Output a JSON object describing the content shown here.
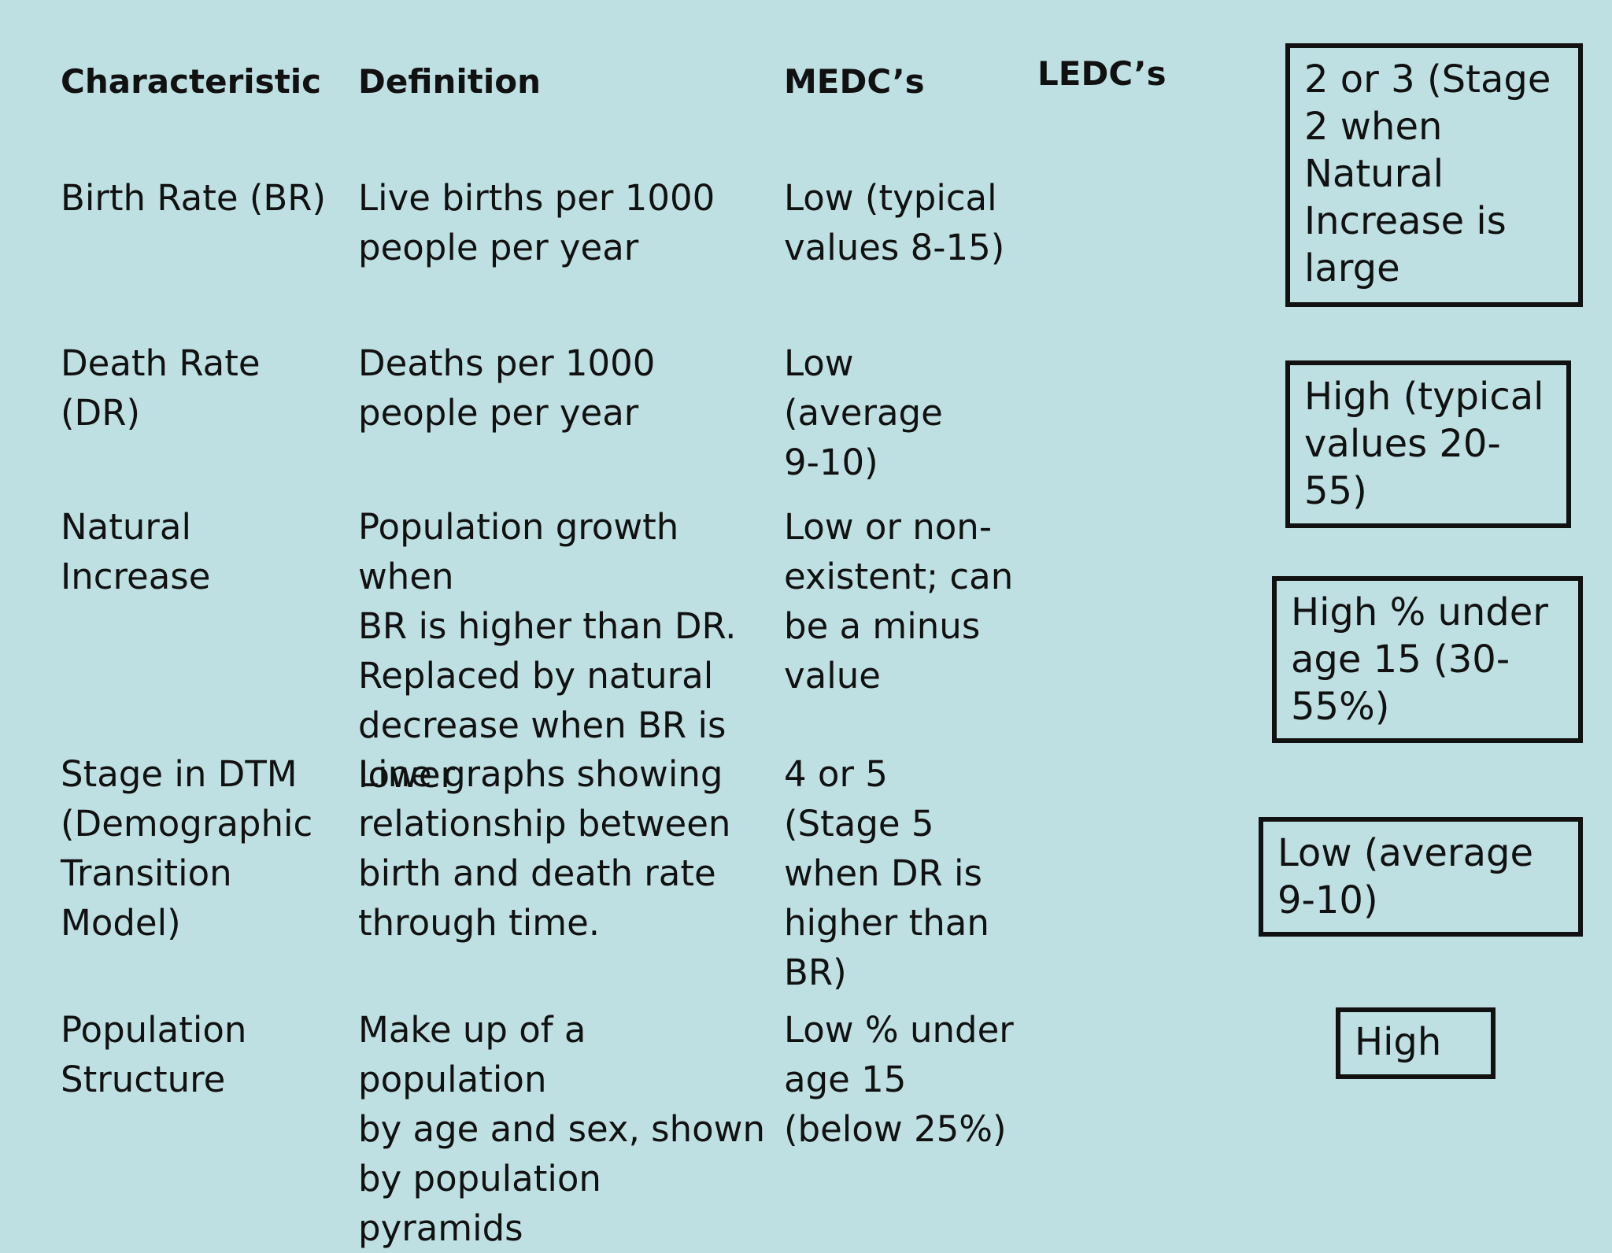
{
  "headers": {
    "characteristic": "Characteristic",
    "definition": "Definition",
    "medcs": "MEDC’s",
    "ledcs": "LEDC’s"
  },
  "rows": [
    {
      "characteristic": "Birth Rate (BR)",
      "definition": "Live births per 1000\npeople per year",
      "medc": "Low (typical\nvalues 8-15)"
    },
    {
      "characteristic": "Death Rate\n(DR)",
      "definition": "Deaths per 1000\npeople per year",
      "medc": "Low (average\n9-10)"
    },
    {
      "characteristic": "Natural\nIncrease",
      "definition": "Population growth when\nBR is higher than DR.\nReplaced by natural\ndecrease when BR is\nlower",
      "medc": "Low or non-\nexistent; can\nbe a minus\nvalue"
    },
    {
      "characteristic": "Stage in DTM\n(Demographic\nTransition\nModel)",
      "definition": "Line graphs showing\nrelationship between\nbirth and death rate\nthrough time.",
      "medc": "4 or 5\n(Stage 5\nwhen DR is\nhigher than\nBR)"
    },
    {
      "characteristic": "Population\nStructure",
      "definition": "Make up of a population\nby age and sex, shown\nby population pyramids",
      "medc": "Low % under\nage 15\n(below 25%)"
    }
  ],
  "ledc_answers": [
    "2 or 3 (Stage\n2 when\nNatural\nIncrease is\nlarge",
    "High (typical\nvalues 20-\n55)",
    "High % under\nage 15 (30-\n55%)",
    "Low (average\n9-10)",
    "High"
  ]
}
